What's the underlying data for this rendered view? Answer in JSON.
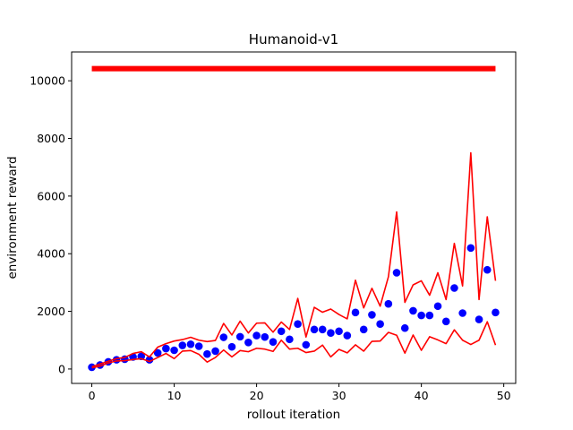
{
  "chart_data": {
    "type": "line",
    "title": "Humanoid-v1",
    "xlabel": "rollout iteration",
    "ylabel": "environment reward",
    "xlim": [
      -2.45,
      51.45
    ],
    "ylim": [
      -500,
      11000
    ],
    "xticks": [
      0,
      10,
      20,
      30,
      40,
      50
    ],
    "yticks": [
      0,
      2000,
      4000,
      6000,
      8000,
      10000
    ],
    "grid": false,
    "legend": "none",
    "x": [
      0,
      1,
      2,
      3,
      4,
      5,
      6,
      7,
      8,
      9,
      10,
      11,
      12,
      13,
      14,
      15,
      16,
      17,
      18,
      19,
      20,
      21,
      22,
      23,
      24,
      25,
      26,
      27,
      28,
      29,
      30,
      31,
      32,
      33,
      34,
      35,
      36,
      37,
      38,
      39,
      40,
      41,
      42,
      43,
      44,
      45,
      46,
      47,
      48,
      49
    ],
    "series": [
      {
        "role": "expert",
        "style": "line",
        "color": "#ff0000",
        "values": [
          10420,
          10420,
          10420,
          10420,
          10420,
          10420,
          10420,
          10420,
          10420,
          10420,
          10420,
          10420,
          10420,
          10420,
          10420,
          10420,
          10420,
          10420,
          10420,
          10420,
          10420,
          10420,
          10420,
          10420,
          10420,
          10420,
          10420,
          10420,
          10420,
          10420,
          10420,
          10420,
          10420,
          10420,
          10420,
          10420,
          10420,
          10420,
          10420,
          10420,
          10420,
          10420,
          10420,
          10420,
          10420,
          10420,
          10420,
          10420,
          10420,
          10420
        ]
      },
      {
        "role": "mean",
        "style": "points",
        "color": "#0000ff",
        "values": [
          60,
          140,
          250,
          320,
          340,
          420,
          440,
          320,
          560,
          710,
          650,
          820,
          860,
          790,
          520,
          620,
          1100,
          770,
          1120,
          920,
          1160,
          1110,
          940,
          1310,
          1030,
          1560,
          840,
          1370,
          1370,
          1250,
          1310,
          1160,
          1960,
          1370,
          1880,
          1560,
          2260,
          3340,
          1420,
          2020,
          1860,
          1860,
          2180,
          1650,
          2810,
          1940,
          4200,
          1720,
          3440,
          1960
        ]
      },
      {
        "role": "upper",
        "style": "line",
        "color": "#ff0000",
        "values": [
          80,
          170,
          270,
          360,
          400,
          540,
          600,
          420,
          760,
          880,
          970,
          1020,
          1100,
          1000,
          950,
          990,
          1580,
          1180,
          1660,
          1250,
          1590,
          1600,
          1280,
          1630,
          1370,
          2450,
          1110,
          2140,
          1970,
          2080,
          1890,
          1740,
          3080,
          2120,
          2800,
          2180,
          3200,
          5450,
          2310,
          2920,
          3060,
          2560,
          3340,
          2410,
          4360,
          2880,
          7500,
          2410,
          5280,
          3060
        ]
      },
      {
        "role": "lower",
        "style": "line",
        "color": "#ff0000",
        "values": [
          40,
          100,
          210,
          280,
          290,
          330,
          360,
          260,
          400,
          540,
          360,
          620,
          640,
          510,
          240,
          400,
          660,
          420,
          640,
          600,
          720,
          690,
          610,
          1000,
          690,
          720,
          570,
          620,
          830,
          420,
          680,
          560,
          840,
          620,
          960,
          970,
          1270,
          1170,
          550,
          1180,
          650,
          1120,
          1010,
          880,
          1360,
          1000,
          850,
          1000,
          1640,
          830
        ]
      }
    ]
  }
}
